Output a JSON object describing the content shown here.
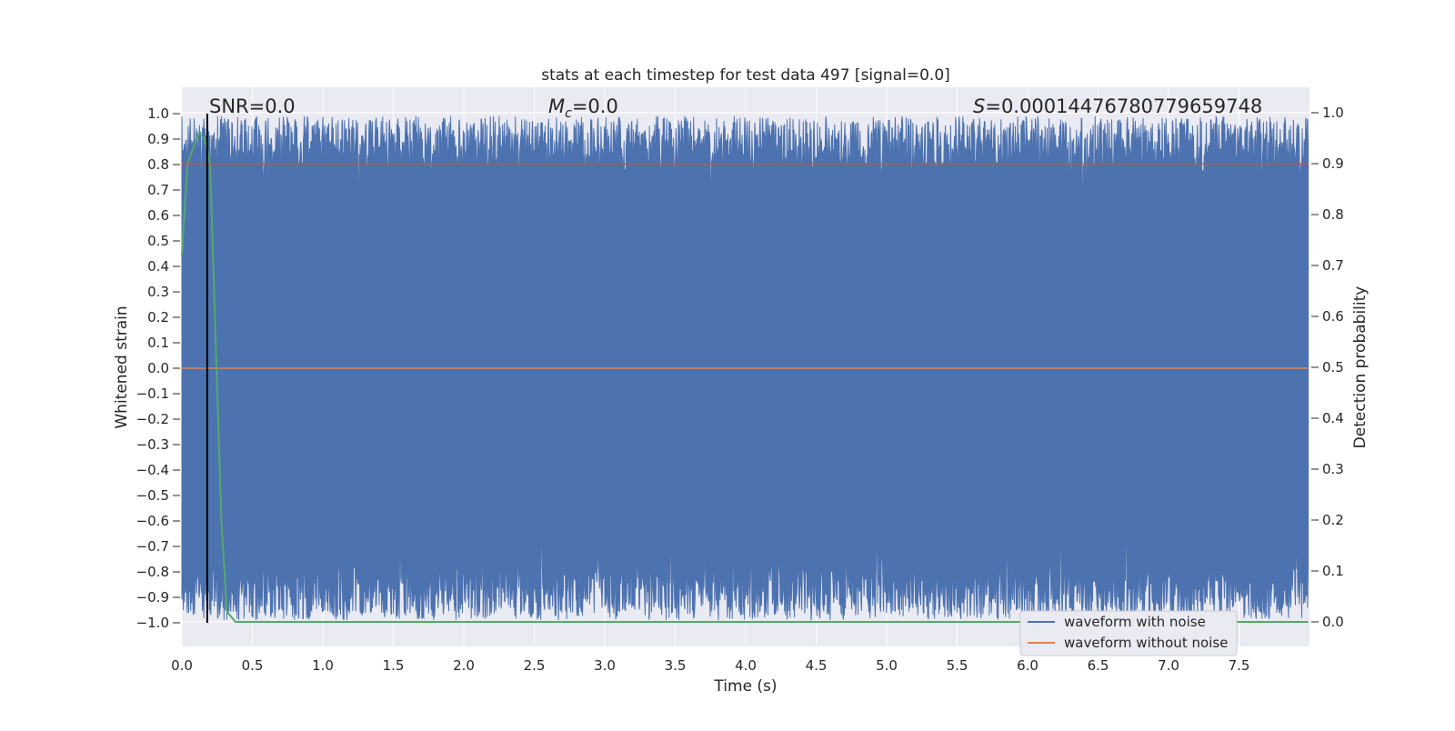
{
  "chart_data": {
    "type": "line",
    "title": "stats at each timestep for test data 497 [signal=0.0]",
    "xlabel": "Time (s)",
    "ylabel": "Whitened strain",
    "y2label": "Detection probability",
    "xlim": [
      0.0,
      8.0
    ],
    "ylim": [
      -1.1,
      1.1
    ],
    "y2lim": [
      -0.05,
      1.05
    ],
    "x_ticks": [
      "0.0",
      "0.5",
      "1.0",
      "1.5",
      "2.0",
      "2.5",
      "3.0",
      "3.5",
      "4.0",
      "4.5",
      "5.0",
      "5.5",
      "6.0",
      "6.5",
      "7.0",
      "7.5"
    ],
    "y_ticks": [
      "1.0",
      "0.9",
      "0.8",
      "0.7",
      "0.6",
      "0.5",
      "0.4",
      "0.3",
      "0.2",
      "0.1",
      "0.0",
      "−0.1",
      "−0.2",
      "−0.3",
      "−0.4",
      "−0.5",
      "−0.6",
      "−0.7",
      "−0.8",
      "−0.9",
      "−1.0"
    ],
    "y2_ticks": [
      "1.0",
      "0.9",
      "0.8",
      "0.7",
      "0.6",
      "0.5",
      "0.4",
      "0.3",
      "0.2",
      "0.1",
      "0.0"
    ],
    "grid": true,
    "legend_position": "lower right",
    "annotations": {
      "snr": "SNR=0.0",
      "mc_symbol": "M",
      "mc_subscript": "c",
      "mc_value": "=0.0",
      "s_symbol": "S",
      "s_value": "=0.00014476780779659748"
    },
    "series": [
      {
        "name": "waveform with noise",
        "color": "#4c72b0",
        "description_envelope": {
          "x_range": [
            0.0,
            7.99
          ],
          "upper_typical": [
            0.75,
            0.99
          ],
          "lower_typical": [
            -0.99,
            -0.75
          ],
          "deep_dips": [
            [
              1.25,
              0.56
            ],
            [
              2.0,
              0.57
            ],
            [
              3.32,
              0.46
            ],
            [
              4.5,
              0.09
            ],
            [
              4.95,
              0.35
            ],
            [
              7.7,
              0.39
            ]
          ],
          "high_spikes": [
            [
              3.71,
              -0.31
            ],
            [
              6.7,
              -0.37
            ],
            [
              7.92,
              -0.43
            ],
            [
              5.95,
              -0.47
            ]
          ]
        }
      },
      {
        "name": "waveform without noise",
        "color": "#dd8452",
        "x": [
          0.0,
          7.99
        ],
        "y": [
          0.0,
          0.0
        ]
      },
      {
        "name": "detection probability",
        "axis": "right",
        "color": "#55a868",
        "x": [
          0.0,
          0.04,
          0.08,
          0.12,
          0.16,
          0.2,
          0.24,
          0.28,
          0.32,
          0.38,
          7.99
        ],
        "y": [
          0.72,
          0.9,
          0.93,
          0.96,
          0.95,
          0.9,
          0.55,
          0.2,
          0.02,
          0.0,
          0.0
        ]
      },
      {
        "name": "threshold",
        "axis": "right",
        "color": "#c44e52",
        "x": [
          0.0,
          7.99
        ],
        "y": [
          0.9,
          0.9
        ]
      },
      {
        "name": "marker",
        "color": "#000000",
        "x": [
          0.18,
          0.18
        ],
        "y": [
          -1.0,
          1.0
        ]
      }
    ],
    "legend": [
      "waveform with noise",
      "waveform without noise"
    ]
  }
}
